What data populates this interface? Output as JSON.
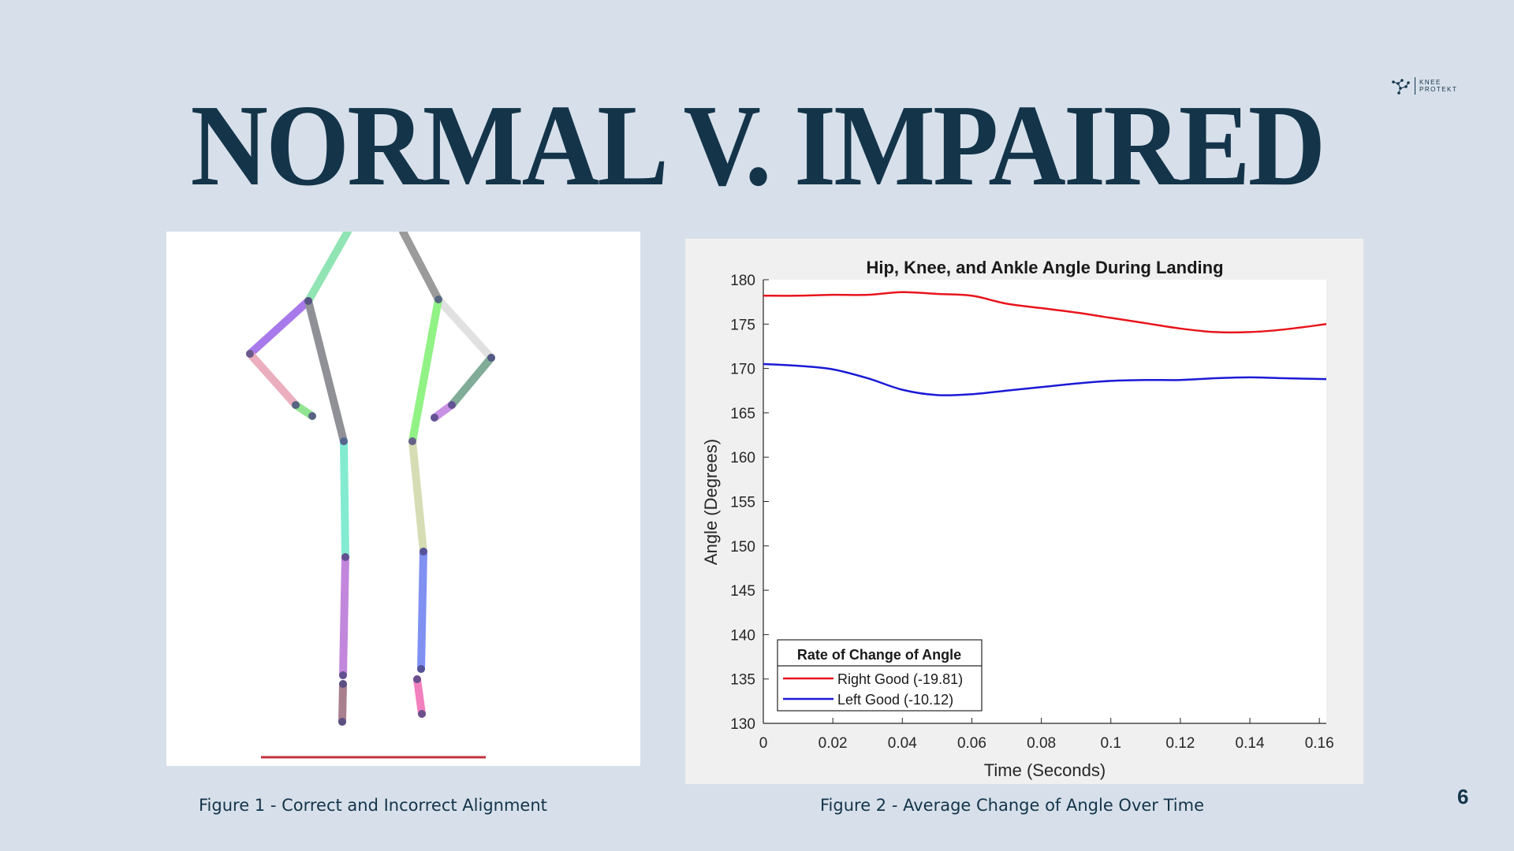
{
  "slide": {
    "title": "NORMAL V. IMPAIRED",
    "page_number": "6",
    "logo": {
      "line1": "KNEE",
      "line2": "PROTEKT",
      "icon": "constellation-logo-icon"
    }
  },
  "figure1": {
    "caption": "Figure 1 - Correct and Incorrect Alignment",
    "image": "stick-figure-skeleton"
  },
  "figure2": {
    "caption": "Figure 2 - Average Change of Angle Over Time"
  },
  "colors": {
    "background": "#d7e0ea",
    "title": "#14344a",
    "right_series": "#e8141c",
    "left_series": "#1a1ad6"
  },
  "chart_data": {
    "type": "line",
    "title": "Hip, Knee, and Ankle Angle During Landing",
    "xlabel": "Time (Seconds)",
    "ylabel": "Angle (Degrees)",
    "xlim": [
      0,
      0.162
    ],
    "ylim": [
      130,
      180
    ],
    "xticks": [
      0,
      0.02,
      0.04,
      0.06,
      0.08,
      0.1,
      0.12,
      0.14,
      0.16
    ],
    "xtick_labels": [
      "0",
      "0.02",
      "0.04",
      "0.06",
      "0.08",
      "0.1",
      "0.12",
      "0.14",
      "0.16"
    ],
    "yticks": [
      130,
      135,
      140,
      145,
      150,
      155,
      160,
      165,
      170,
      175,
      180
    ],
    "grid": false,
    "legend": {
      "title": "Rate of Change of Angle",
      "position": "bottom-left"
    },
    "series": [
      {
        "name": "Right Good (-19.81)",
        "color": "#e8141c",
        "x": [
          0,
          0.01,
          0.02,
          0.03,
          0.04,
          0.05,
          0.06,
          0.07,
          0.08,
          0.09,
          0.1,
          0.11,
          0.12,
          0.13,
          0.14,
          0.15,
          0.162
        ],
        "y": [
          178.2,
          178.2,
          178.3,
          178.3,
          178.6,
          178.4,
          178.2,
          177.3,
          176.8,
          176.3,
          175.7,
          175.1,
          174.5,
          174.1,
          174.1,
          174.4,
          175.0
        ]
      },
      {
        "name": "Left Good (-10.12)",
        "color": "#1a1ad6",
        "x": [
          0,
          0.01,
          0.02,
          0.03,
          0.04,
          0.05,
          0.06,
          0.07,
          0.08,
          0.09,
          0.1,
          0.11,
          0.12,
          0.13,
          0.14,
          0.15,
          0.162
        ],
        "y": [
          170.5,
          170.3,
          169.9,
          168.9,
          167.6,
          167.0,
          167.1,
          167.5,
          167.9,
          168.3,
          168.6,
          168.7,
          168.7,
          168.9,
          169.0,
          168.9,
          168.8
        ]
      }
    ]
  }
}
